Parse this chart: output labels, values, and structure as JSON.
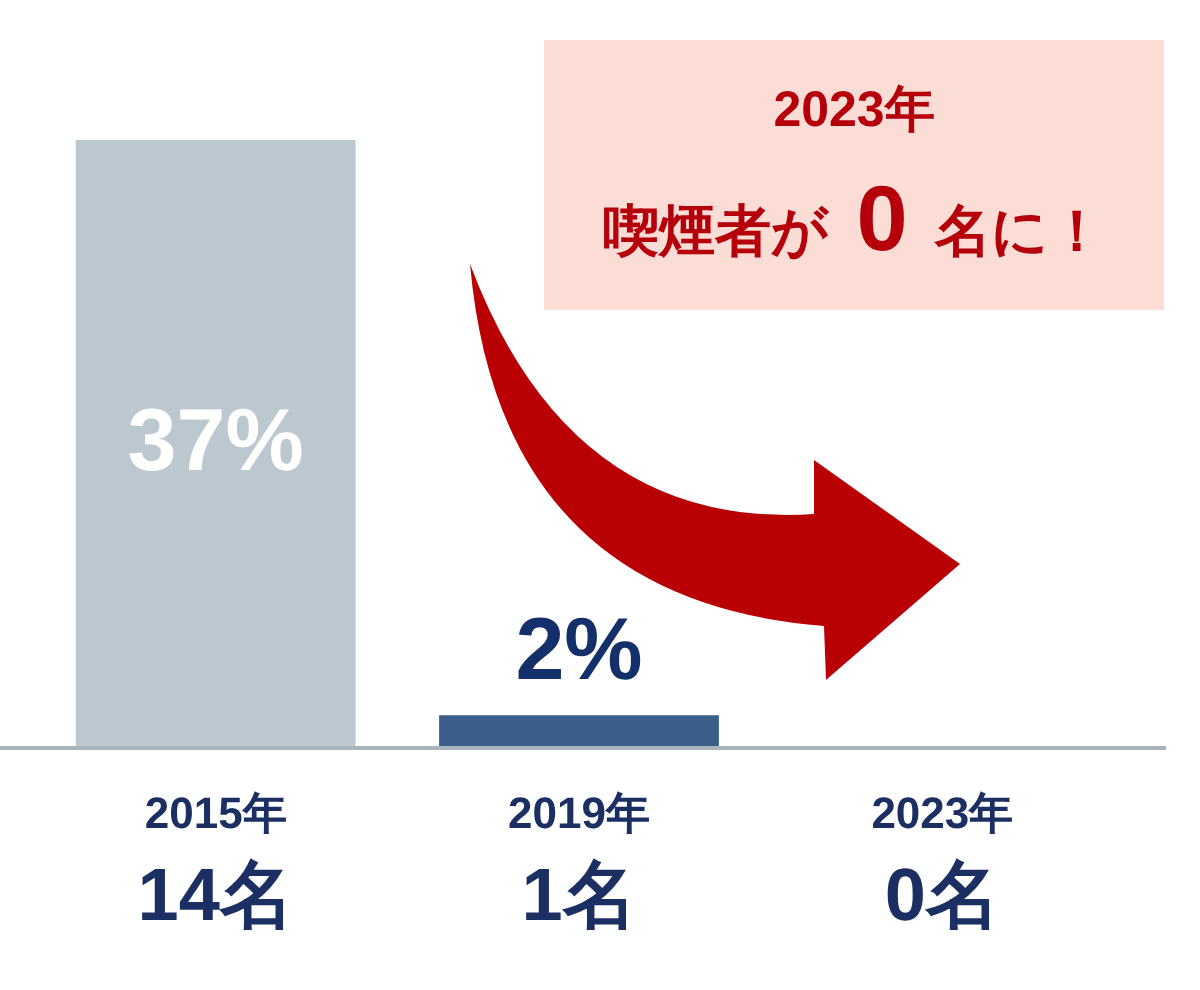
{
  "chart_data": {
    "type": "bar",
    "categories": [
      "2015年\n14名",
      "2019年\n1名",
      "2023年\n0名"
    ],
    "values": [
      37,
      2,
      0
    ],
    "colors": [
      "#bcc8d0",
      "#3a5d8a",
      "#3a5d8a"
    ],
    "value_labels": [
      "37%",
      "2%",
      null
    ],
    "ylim": [
      0,
      37
    ],
    "tick_labels": "x",
    "annotations": [
      "2023年",
      "喫煙者が 0 名に！"
    ]
  }
}
